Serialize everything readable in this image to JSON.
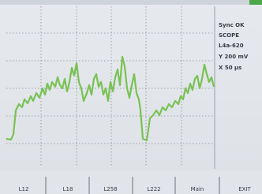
{
  "status_panel": {
    "lines": [
      "Sync OK",
      "SCOPE",
      "L4a-620",
      "Y 200 mV",
      "X  50 µs"
    ]
  },
  "softkeys": [
    "L12",
    "L18",
    "L258",
    "L222",
    "Main",
    "EXIT"
  ]
}
